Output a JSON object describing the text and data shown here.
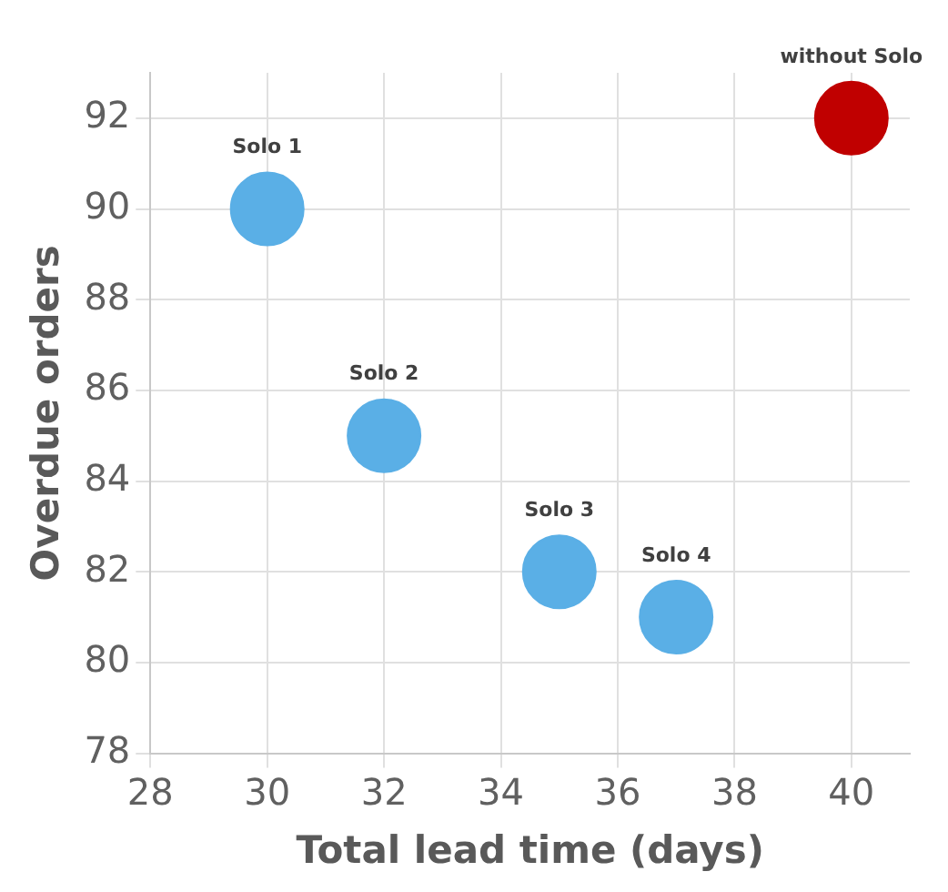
{
  "chart_data": {
    "type": "scatter",
    "xlabel": "Total lead time (days)",
    "ylabel": "Overdue orders",
    "series": [
      {
        "color": "#5aafe6",
        "x": [
          30,
          32,
          35,
          37
        ],
        "values": [
          90,
          85,
          82,
          81
        ]
      },
      {
        "color": "#c00000",
        "x": [
          40
        ],
        "values": [
          92
        ]
      }
    ],
    "annotations": [
      {
        "text": "Solo 1",
        "x": 30,
        "y": 90
      },
      {
        "text": "Solo 2",
        "x": 32,
        "y": 85
      },
      {
        "text": "Solo 3",
        "x": 35,
        "y": 82
      },
      {
        "text": "Solo 4",
        "x": 37,
        "y": 81
      },
      {
        "text": "without Solo",
        "x": 40,
        "y": 92
      }
    ],
    "xlim": [
      28,
      41
    ],
    "xticks": [
      28,
      30,
      32,
      34,
      36,
      38,
      40
    ],
    "ylim": [
      78,
      93
    ],
    "yticks": [
      78,
      80,
      82,
      84,
      86,
      88,
      90,
      92
    ],
    "grid": true,
    "legend": false,
    "marker": "circle"
  }
}
